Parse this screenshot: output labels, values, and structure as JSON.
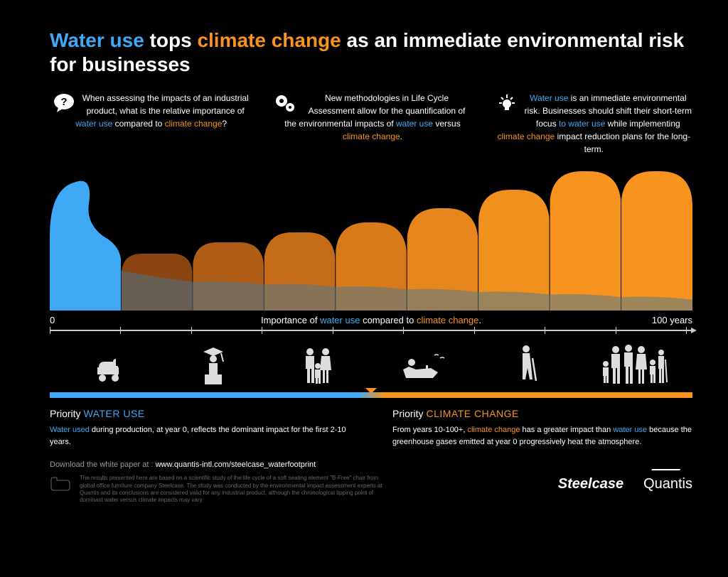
{
  "title": {
    "part1": "Water use",
    "part2": " tops ",
    "part3": "climate change",
    "part4": " as an immediate environmental risk for businesses"
  },
  "columns": [
    {
      "icon": "question",
      "pre": "When assessing the impacts of an industrial product, what is the relative importance of ",
      "blue": "water use",
      "mid": " compared to ",
      "orange": "climate change",
      "post": "?"
    },
    {
      "icon": "gears",
      "pre": "New methodologies in Life Cycle Assessment allow for the quantification of the environmental impacts of ",
      "blue": "water use",
      "mid": " versus ",
      "orange": "climate change",
      "post": "."
    },
    {
      "icon": "bulb",
      "blue1": "Water use",
      "t1": " is an immediate environmental risk. Businesses should shift their short-term focus ",
      "blue2": "to water use",
      "t2": " while implementing ",
      "orange": "climate change",
      "t3": " impact reduction plans for the long-term."
    }
  ],
  "chart": {
    "bg": "#000000",
    "water_wave_color": "#3fa9f5",
    "water_trail_color": "rgba(70,120,150,0.5)",
    "orange_shades": [
      "#8b4513",
      "#b05e17",
      "#c46c18",
      "#d87a1a",
      "#e6861c",
      "#f0901d",
      "#f7931e",
      "#f7931e"
    ],
    "heights": [
      0.4,
      0.48,
      0.55,
      0.62,
      0.72,
      0.85,
      0.98,
      0.98
    ]
  },
  "axis": {
    "start": "0",
    "center_pre": "Importance of ",
    "center_blue": "water use",
    "center_mid": " compared to ",
    "center_orange": "climate change",
    "center_post": ".",
    "end": "100 years"
  },
  "priorities": {
    "left": {
      "label_pre": "Priority ",
      "label": "WATER USE",
      "body_blue": "Water used",
      "body": " during production, at year 0, reflects the dominant impact for the first 2-10 years."
    },
    "right": {
      "label_pre": "Priority ",
      "label": "CLIMATE CHANGE",
      "body_pre": "From years 10-100+, ",
      "body_orange": "climate change",
      "body_mid": " has a greater impact than ",
      "body_blue": "water use",
      "body_post": " because the greenhouse gases emitted at year 0 progressively heat the atmosphere."
    }
  },
  "download": {
    "pre": "Download the white paper at : ",
    "url": "www.quantis-intl.com/steelcase_waterfootprint"
  },
  "disclaimer": "The results presented here are based on a scientific study of the life cycle of a soft seating element \"B-Free\" chair from global office furniture company Steelcase. The study was conducted by the environmental impact assessment experts at Quantis and its conclusions are considered valid for any industrial product, although the chronological tipping point of dominant water versus climate impacts may vary.",
  "logos": {
    "l1": "Steelcase",
    "l2": "Quantis"
  }
}
